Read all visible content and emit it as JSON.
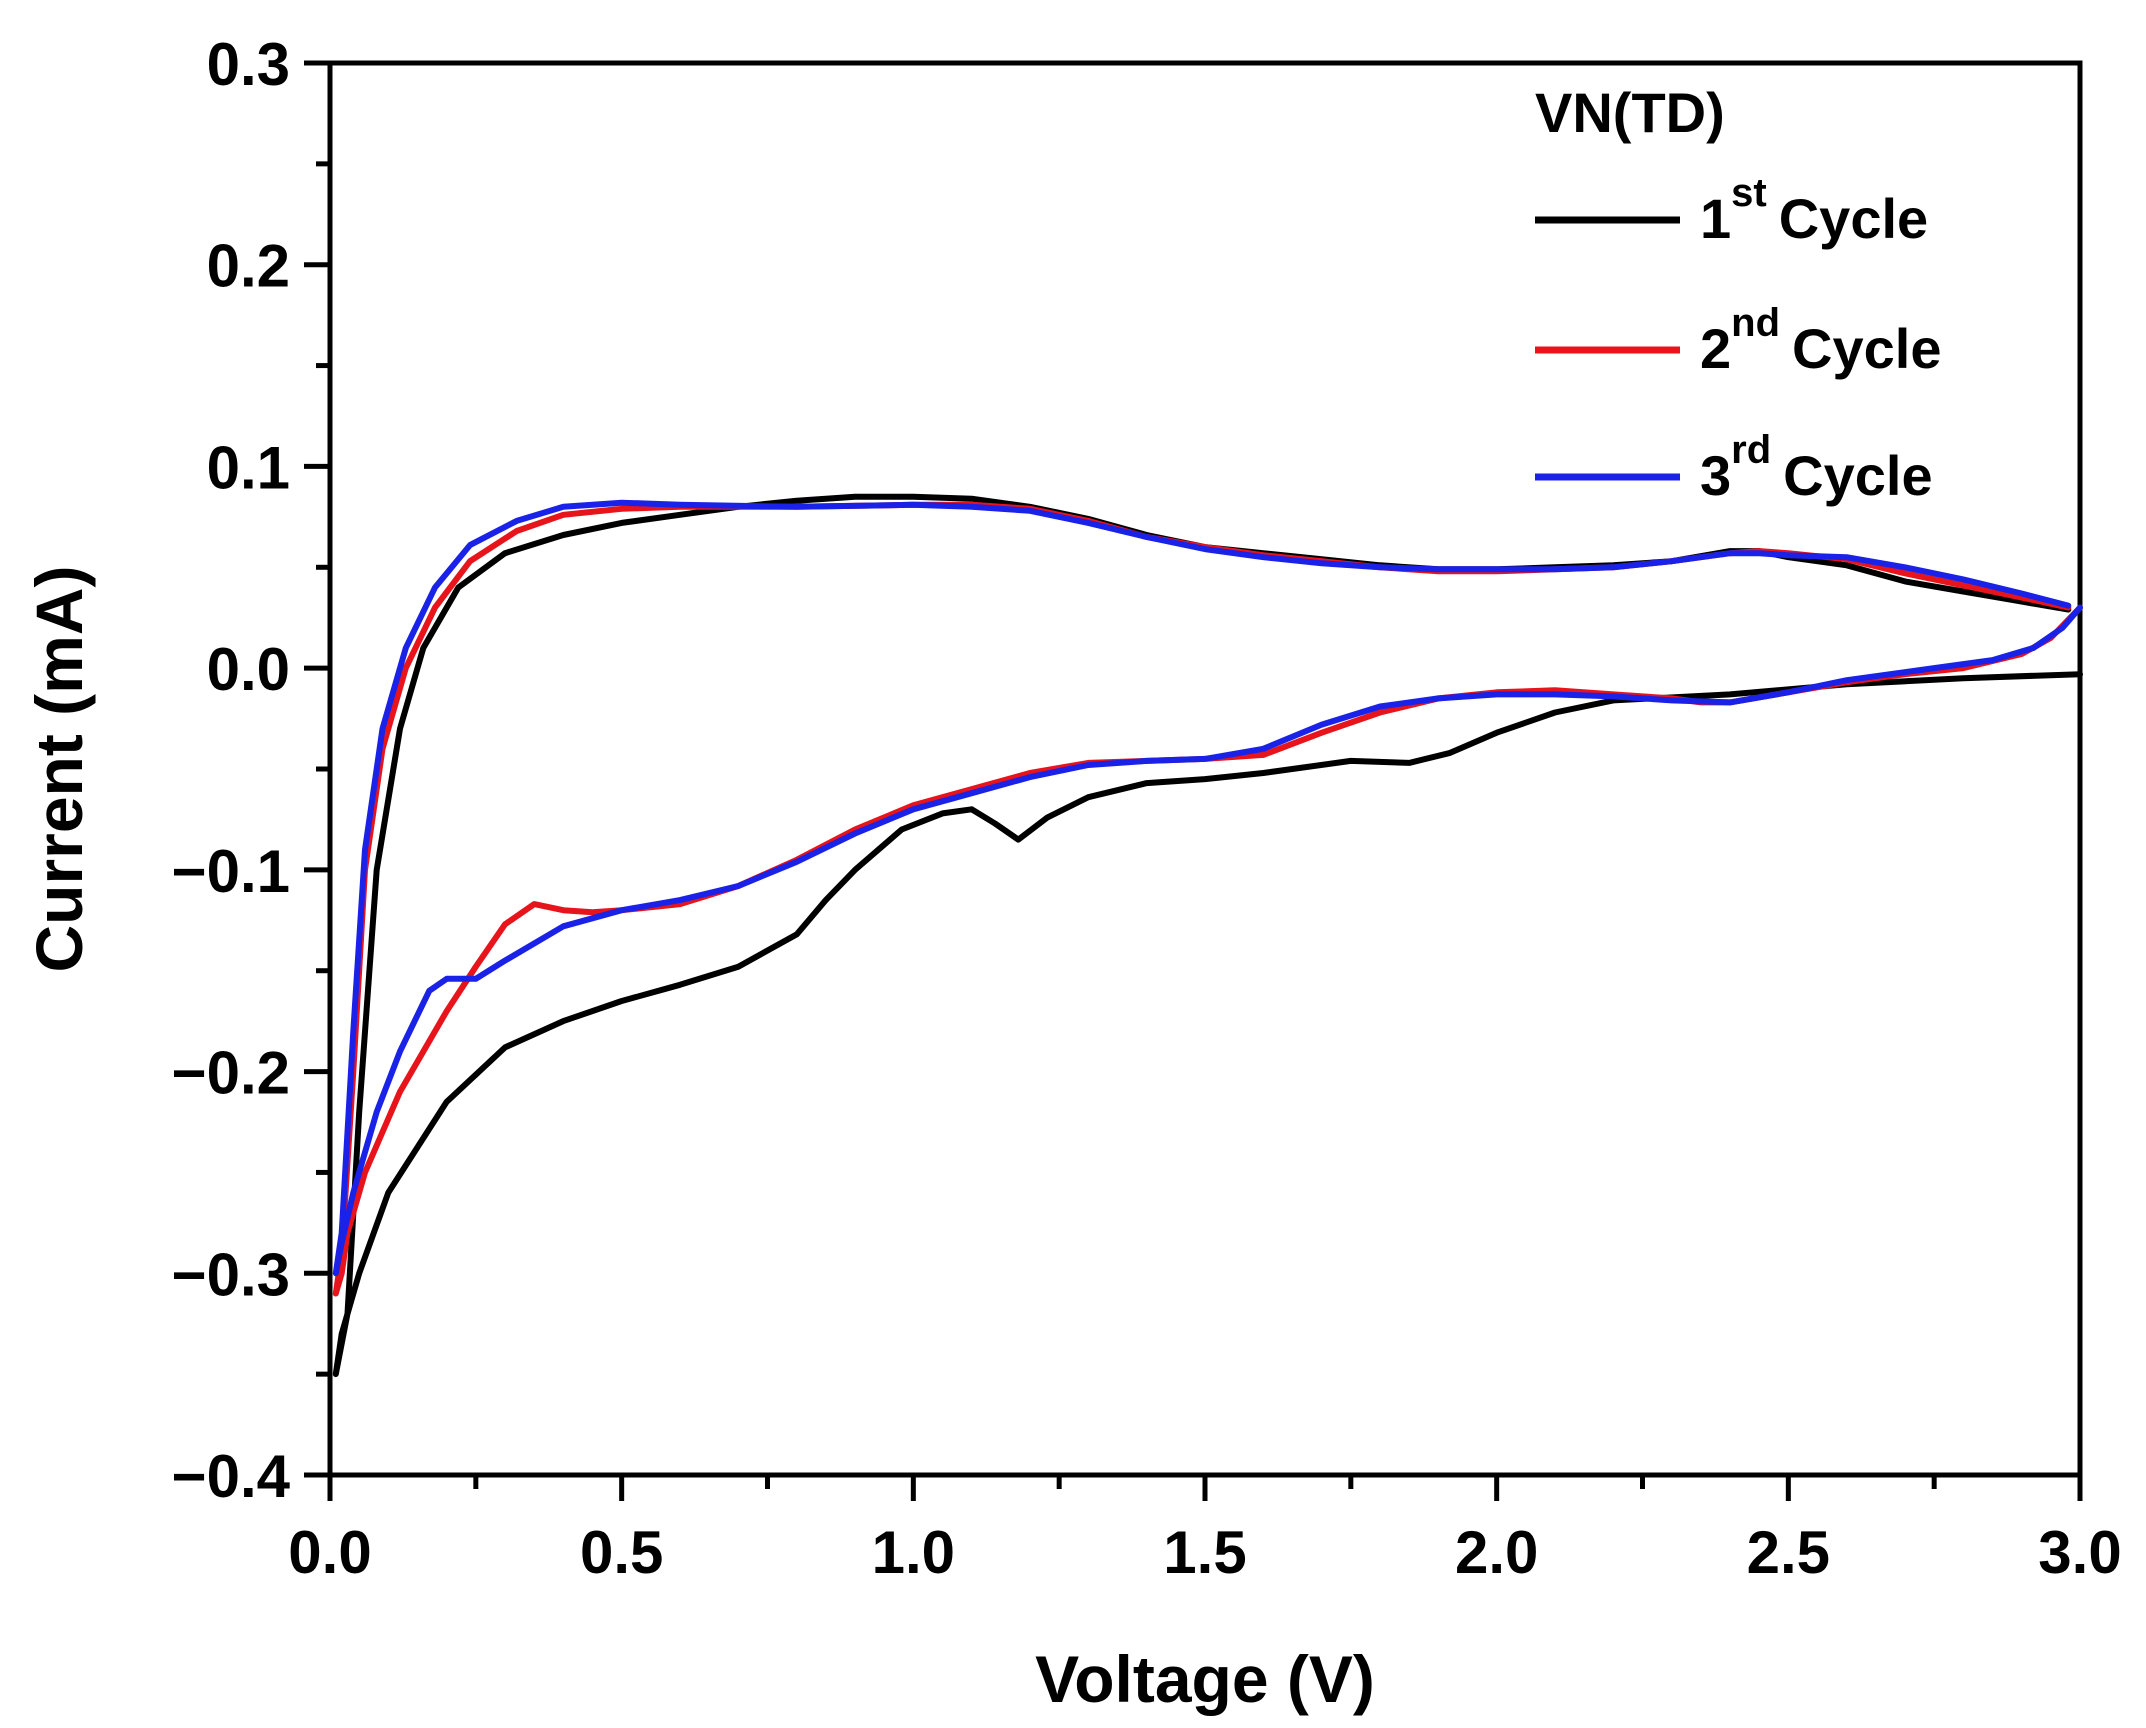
{
  "chart_data": {
    "type": "line",
    "xlabel": "Voltage (V)",
    "ylabel": "Current (mA)",
    "xlim": [
      0.0,
      3.0
    ],
    "ylim": [
      -0.4,
      0.3
    ],
    "xticks": [
      "0.0",
      "0.5",
      "1.0",
      "1.5",
      "2.0",
      "2.5",
      "3.0"
    ],
    "yticks": [
      "0.3",
      "0.2",
      "0.1",
      "0.0",
      "−0.1",
      "−0.2",
      "−0.3",
      "−0.4"
    ],
    "grid": false,
    "legend": {
      "placement": "top-right",
      "title": "VN(TD)",
      "entries": [
        {
          "number": "1",
          "sup": "st",
          "text": "Cycle"
        },
        {
          "number": "2",
          "sup": "nd",
          "text": "Cycle"
        },
        {
          "number": "3",
          "sup": "rd",
          "text": "Cycle"
        }
      ]
    },
    "series": [
      {
        "name": "1st Cycle",
        "color": "#000000",
        "points": [
          [
            3.0,
            -0.003
          ],
          [
            2.8,
            -0.005
          ],
          [
            2.6,
            -0.008
          ],
          [
            2.4,
            -0.013
          ],
          [
            2.2,
            -0.016
          ],
          [
            2.1,
            -0.022
          ],
          [
            2.0,
            -0.032
          ],
          [
            1.92,
            -0.042
          ],
          [
            1.85,
            -0.047
          ],
          [
            1.75,
            -0.046
          ],
          [
            1.6,
            -0.052
          ],
          [
            1.5,
            -0.055
          ],
          [
            1.4,
            -0.057
          ],
          [
            1.3,
            -0.064
          ],
          [
            1.23,
            -0.074
          ],
          [
            1.18,
            -0.085
          ],
          [
            1.14,
            -0.077
          ],
          [
            1.1,
            -0.07
          ],
          [
            1.05,
            -0.072
          ],
          [
            0.98,
            -0.08
          ],
          [
            0.9,
            -0.1
          ],
          [
            0.85,
            -0.115
          ],
          [
            0.8,
            -0.132
          ],
          [
            0.7,
            -0.148
          ],
          [
            0.6,
            -0.157
          ],
          [
            0.5,
            -0.165
          ],
          [
            0.4,
            -0.175
          ],
          [
            0.3,
            -0.188
          ],
          [
            0.2,
            -0.215
          ],
          [
            0.1,
            -0.26
          ],
          [
            0.05,
            -0.3
          ],
          [
            0.02,
            -0.33
          ],
          [
            0.01,
            -0.35
          ],
          [
            0.03,
            -0.32
          ],
          [
            0.05,
            -0.22
          ],
          [
            0.08,
            -0.1
          ],
          [
            0.12,
            -0.03
          ],
          [
            0.16,
            0.01
          ],
          [
            0.22,
            0.04
          ],
          [
            0.3,
            0.057
          ],
          [
            0.4,
            0.066
          ],
          [
            0.5,
            0.072
          ],
          [
            0.6,
            0.076
          ],
          [
            0.7,
            0.08
          ],
          [
            0.8,
            0.083
          ],
          [
            0.9,
            0.085
          ],
          [
            1.0,
            0.085
          ],
          [
            1.1,
            0.084
          ],
          [
            1.2,
            0.08
          ],
          [
            1.3,
            0.074
          ],
          [
            1.4,
            0.066
          ],
          [
            1.5,
            0.06
          ],
          [
            1.6,
            0.057
          ],
          [
            1.7,
            0.054
          ],
          [
            1.8,
            0.051
          ],
          [
            1.9,
            0.049
          ],
          [
            2.0,
            0.049
          ],
          [
            2.1,
            0.05
          ],
          [
            2.2,
            0.051
          ],
          [
            2.3,
            0.053
          ],
          [
            2.4,
            0.058
          ],
          [
            2.45,
            0.058
          ],
          [
            2.5,
            0.055
          ],
          [
            2.6,
            0.051
          ],
          [
            2.7,
            0.043
          ],
          [
            2.8,
            0.038
          ],
          [
            2.9,
            0.033
          ],
          [
            2.98,
            0.029
          ]
        ]
      },
      {
        "name": "2nd Cycle",
        "color": "#e8141c",
        "points": [
          [
            3.0,
            0.03
          ],
          [
            2.95,
            0.015
          ],
          [
            2.9,
            0.007
          ],
          [
            2.8,
            0.0
          ],
          [
            2.7,
            -0.003
          ],
          [
            2.6,
            -0.007
          ],
          [
            2.5,
            -0.012
          ],
          [
            2.4,
            -0.017
          ],
          [
            2.35,
            -0.017
          ],
          [
            2.3,
            -0.015
          ],
          [
            2.2,
            -0.013
          ],
          [
            2.1,
            -0.011
          ],
          [
            2.0,
            -0.012
          ],
          [
            1.9,
            -0.015
          ],
          [
            1.8,
            -0.022
          ],
          [
            1.7,
            -0.032
          ],
          [
            1.6,
            -0.043
          ],
          [
            1.5,
            -0.045
          ],
          [
            1.4,
            -0.046
          ],
          [
            1.3,
            -0.047
          ],
          [
            1.2,
            -0.052
          ],
          [
            1.1,
            -0.06
          ],
          [
            1.0,
            -0.068
          ],
          [
            0.9,
            -0.08
          ],
          [
            0.8,
            -0.095
          ],
          [
            0.7,
            -0.108
          ],
          [
            0.6,
            -0.117
          ],
          [
            0.5,
            -0.12
          ],
          [
            0.45,
            -0.121
          ],
          [
            0.4,
            -0.12
          ],
          [
            0.35,
            -0.117
          ],
          [
            0.3,
            -0.127
          ],
          [
            0.25,
            -0.148
          ],
          [
            0.2,
            -0.17
          ],
          [
            0.12,
            -0.21
          ],
          [
            0.06,
            -0.25
          ],
          [
            0.03,
            -0.28
          ],
          [
            0.02,
            -0.3
          ],
          [
            0.01,
            -0.31
          ],
          [
            0.02,
            -0.29
          ],
          [
            0.04,
            -0.2
          ],
          [
            0.06,
            -0.1
          ],
          [
            0.09,
            -0.04
          ],
          [
            0.13,
            0.0
          ],
          [
            0.18,
            0.03
          ],
          [
            0.24,
            0.053
          ],
          [
            0.32,
            0.068
          ],
          [
            0.4,
            0.076
          ],
          [
            0.5,
            0.079
          ],
          [
            0.6,
            0.08
          ],
          [
            0.8,
            0.08
          ],
          [
            1.0,
            0.081
          ],
          [
            1.1,
            0.081
          ],
          [
            1.2,
            0.079
          ],
          [
            1.3,
            0.073
          ],
          [
            1.4,
            0.065
          ],
          [
            1.5,
            0.06
          ],
          [
            1.6,
            0.056
          ],
          [
            1.7,
            0.053
          ],
          [
            1.8,
            0.05
          ],
          [
            1.9,
            0.048
          ],
          [
            2.0,
            0.048
          ],
          [
            2.1,
            0.049
          ],
          [
            2.2,
            0.05
          ],
          [
            2.3,
            0.053
          ],
          [
            2.4,
            0.057
          ],
          [
            2.45,
            0.058
          ],
          [
            2.5,
            0.057
          ],
          [
            2.6,
            0.054
          ],
          [
            2.7,
            0.047
          ],
          [
            2.8,
            0.041
          ],
          [
            2.9,
            0.035
          ],
          [
            2.98,
            0.03
          ]
        ]
      },
      {
        "name": "3rd Cycle",
        "color": "#1a22e8",
        "points": [
          [
            3.0,
            0.03
          ],
          [
            2.97,
            0.02
          ],
          [
            2.92,
            0.01
          ],
          [
            2.85,
            0.004
          ],
          [
            2.75,
            0.0
          ],
          [
            2.6,
            -0.006
          ],
          [
            2.5,
            -0.012
          ],
          [
            2.4,
            -0.017
          ],
          [
            2.3,
            -0.016
          ],
          [
            2.2,
            -0.014
          ],
          [
            2.1,
            -0.013
          ],
          [
            2.0,
            -0.013
          ],
          [
            1.9,
            -0.015
          ],
          [
            1.8,
            -0.019
          ],
          [
            1.7,
            -0.028
          ],
          [
            1.6,
            -0.04
          ],
          [
            1.5,
            -0.045
          ],
          [
            1.4,
            -0.046
          ],
          [
            1.3,
            -0.048
          ],
          [
            1.2,
            -0.054
          ],
          [
            1.1,
            -0.062
          ],
          [
            1.0,
            -0.07
          ],
          [
            0.9,
            -0.082
          ],
          [
            0.8,
            -0.096
          ],
          [
            0.7,
            -0.108
          ],
          [
            0.6,
            -0.115
          ],
          [
            0.5,
            -0.12
          ],
          [
            0.4,
            -0.128
          ],
          [
            0.3,
            -0.145
          ],
          [
            0.25,
            -0.154
          ],
          [
            0.2,
            -0.154
          ],
          [
            0.17,
            -0.16
          ],
          [
            0.12,
            -0.19
          ],
          [
            0.08,
            -0.22
          ],
          [
            0.04,
            -0.26
          ],
          [
            0.02,
            -0.285
          ],
          [
            0.01,
            -0.3
          ],
          [
            0.02,
            -0.28
          ],
          [
            0.04,
            -0.18
          ],
          [
            0.06,
            -0.09
          ],
          [
            0.09,
            -0.03
          ],
          [
            0.13,
            0.01
          ],
          [
            0.18,
            0.04
          ],
          [
            0.24,
            0.061
          ],
          [
            0.32,
            0.073
          ],
          [
            0.4,
            0.08
          ],
          [
            0.5,
            0.082
          ],
          [
            0.6,
            0.081
          ],
          [
            0.8,
            0.08
          ],
          [
            1.0,
            0.081
          ],
          [
            1.1,
            0.08
          ],
          [
            1.2,
            0.078
          ],
          [
            1.3,
            0.072
          ],
          [
            1.4,
            0.065
          ],
          [
            1.5,
            0.059
          ],
          [
            1.6,
            0.055
          ],
          [
            1.7,
            0.052
          ],
          [
            1.8,
            0.05
          ],
          [
            1.9,
            0.049
          ],
          [
            2.0,
            0.049
          ],
          [
            2.1,
            0.049
          ],
          [
            2.2,
            0.05
          ],
          [
            2.3,
            0.053
          ],
          [
            2.4,
            0.057
          ],
          [
            2.45,
            0.057
          ],
          [
            2.5,
            0.056
          ],
          [
            2.6,
            0.055
          ],
          [
            2.7,
            0.05
          ],
          [
            2.8,
            0.044
          ],
          [
            2.9,
            0.037
          ],
          [
            2.98,
            0.031
          ]
        ]
      }
    ]
  }
}
